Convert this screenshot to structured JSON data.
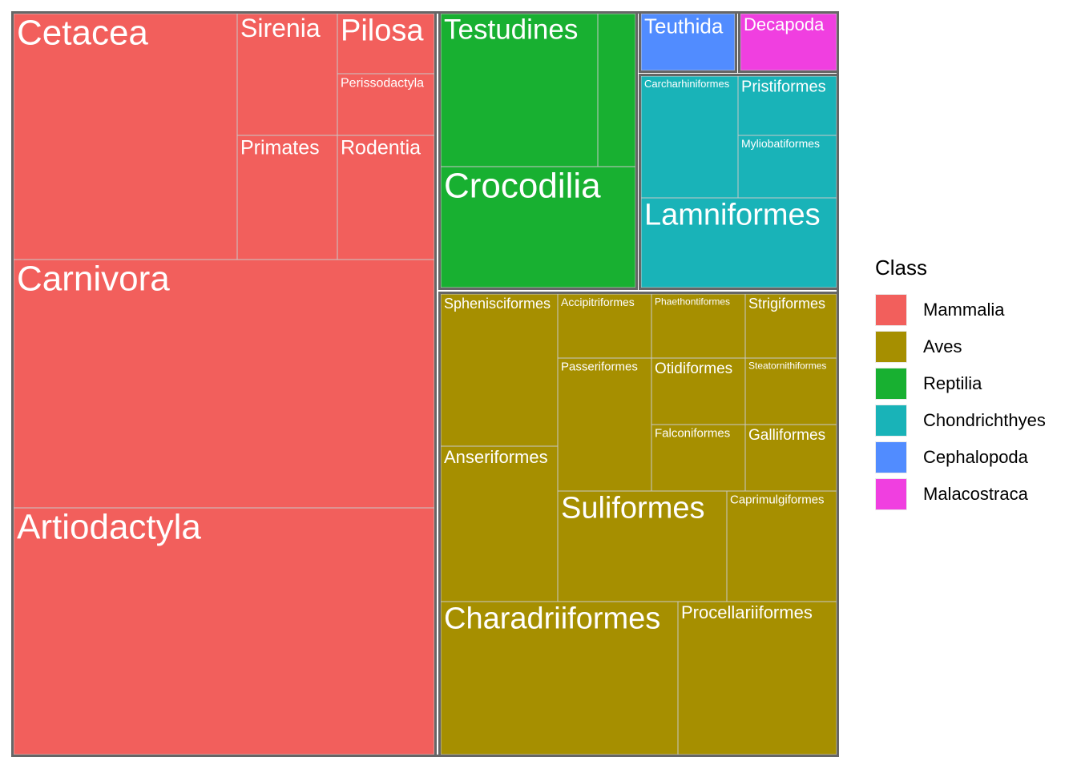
{
  "chart_data": {
    "type": "treemap",
    "legend": {
      "title": "Class",
      "position": "right"
    },
    "groups": [
      {
        "name": "Mammalia",
        "color": "#F25F5C"
      },
      {
        "name": "Aves",
        "color": "#A68F00"
      },
      {
        "name": "Reptilia",
        "color": "#18B031"
      },
      {
        "name": "Chondrichthyes",
        "color": "#19B3B8"
      },
      {
        "name": "Cephalopoda",
        "color": "#518CFF"
      },
      {
        "name": "Malacostraca",
        "color": "#F03FE0"
      }
    ],
    "items": [
      {
        "label": "Cetacea",
        "class": "Mammalia",
        "area": 85000
      },
      {
        "label": "Sirenia",
        "class": "Mammalia",
        "area": 18900
      },
      {
        "label": "Pilosa",
        "class": "Mammalia",
        "area": 9200
      },
      {
        "label": "Perissodactyla",
        "class": "Mammalia",
        "area": 9200
      },
      {
        "label": "Primates",
        "class": "Mammalia",
        "area": 19400
      },
      {
        "label": "Rodentia",
        "class": "Mammalia",
        "area": 19400
      },
      {
        "label": "Carnivora",
        "class": "Mammalia",
        "area": 161000
      },
      {
        "label": "Artiodactyla",
        "class": "Mammalia",
        "area": 161000
      },
      {
        "label": "Testudines",
        "class": "Reptilia",
        "area": 37000
      },
      {
        "label": "",
        "class": "Reptilia",
        "area": 8800
      },
      {
        "label": "Crocodilia",
        "class": "Reptilia",
        "area": 37200
      },
      {
        "label": "Teuthida",
        "class": "Cephalopoda",
        "area": 5000
      },
      {
        "label": "Decapoda",
        "class": "Malacostraca",
        "area": 5000
      },
      {
        "label": "Carcharhiniformes",
        "class": "Chondrichthyes",
        "area": 17300
      },
      {
        "label": "Pristiformes",
        "class": "Chondrichthyes",
        "area": 9000
      },
      {
        "label": "Myliobatiformes",
        "class": "Chondrichthyes",
        "area": 9000
      },
      {
        "label": "Lamniformes",
        "class": "Chondrichthyes",
        "area": 26500
      },
      {
        "label": "Sphenisciformes",
        "class": "Aves",
        "area": 27000
      },
      {
        "label": "Anseriformes",
        "class": "Aves",
        "area": 27000
      },
      {
        "label": "Accipitriformes",
        "class": "Aves",
        "area": 9500
      },
      {
        "label": "Phaethontiformes",
        "class": "Aves",
        "area": 9500
      },
      {
        "label": "Strigiformes",
        "class": "Aves",
        "area": 9500
      },
      {
        "label": "Passeriformes",
        "class": "Aves",
        "area": 19000
      },
      {
        "label": "Otidiformes",
        "class": "Aves",
        "area": 9500
      },
      {
        "label": "Steatornithiformes",
        "class": "Aves",
        "area": 9500
      },
      {
        "label": "Falconiformes",
        "class": "Aves",
        "area": 9500
      },
      {
        "label": "Galliformes",
        "class": "Aves",
        "area": 9500
      },
      {
        "label": "Suliformes",
        "class": "Aves",
        "area": 28900
      },
      {
        "label": "Caprimulgiformes",
        "class": "Aves",
        "area": 18800
      },
      {
        "label": "Charadriiformes",
        "class": "Aves",
        "area": 56000
      },
      {
        "label": "Procellariiformes",
        "class": "Aves",
        "area": 37500
      }
    ]
  }
}
